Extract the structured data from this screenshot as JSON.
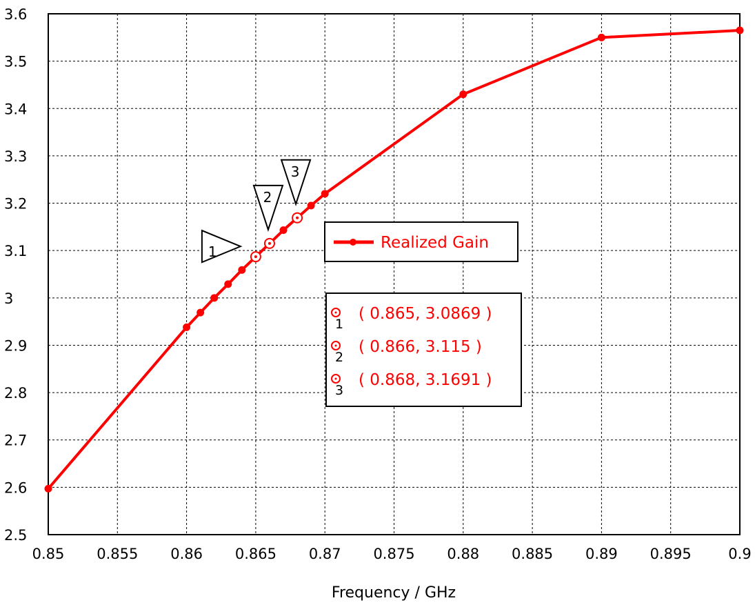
{
  "chart_data": {
    "type": "line",
    "xlabel": "Frequency / GHz",
    "ylabel": "",
    "xlim": [
      0.85,
      0.9
    ],
    "ylim": [
      2.5,
      3.6
    ],
    "x_ticks": [
      "0.85",
      "0.855",
      "0.86",
      "0.865",
      "0.87",
      "0.875",
      "0.88",
      "0.885",
      "0.89",
      "0.895",
      "0.9"
    ],
    "y_ticks": [
      "2.5",
      "2.6",
      "2.7",
      "2.8",
      "2.9",
      "3",
      "3.1",
      "3.2",
      "3.3",
      "3.4",
      "3.5",
      "3.6"
    ],
    "grid": true,
    "legend_position": "right-center",
    "series": [
      {
        "name": "Realized Gain",
        "color": "#ff0000",
        "x": [
          0.85,
          0.86,
          0.861,
          0.862,
          0.863,
          0.864,
          0.865,
          0.866,
          0.867,
          0.868,
          0.869,
          0.87,
          0.88,
          0.89,
          0.9
        ],
        "y": [
          2.597,
          2.938,
          2.969,
          3.0,
          3.029,
          3.059,
          3.0869,
          3.115,
          3.143,
          3.1691,
          3.195,
          3.22,
          3.43,
          3.55,
          3.565
        ]
      }
    ],
    "markers": [
      {
        "id": "1",
        "x": 0.865,
        "y": 3.0869,
        "label": "( 0.865, 3.0869 )"
      },
      {
        "id": "2",
        "x": 0.866,
        "y": 3.115,
        "label": "( 0.866, 3.115 )"
      },
      {
        "id": "3",
        "x": 0.868,
        "y": 3.1691,
        "label": "( 0.868, 3.1691 )"
      }
    ]
  }
}
